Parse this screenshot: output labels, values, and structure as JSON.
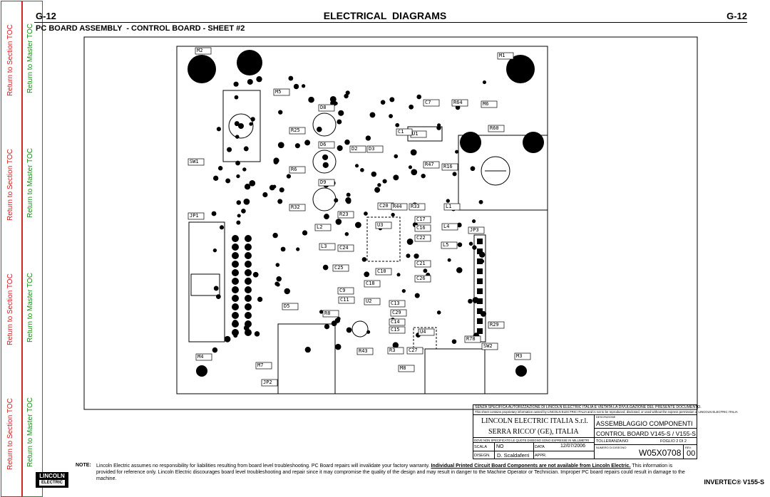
{
  "sidebar": {
    "section_toc": [
      "Return to Section TOC",
      "Return to Section TOC",
      "Return to Section TOC",
      "Return to Section TOC"
    ],
    "master_toc": [
      "Return to Master TOC",
      "Return to Master TOC",
      "Return to Master TOC",
      "Return to Master TOC"
    ]
  },
  "header": {
    "page_left": "G-12",
    "title": "ELECTRICAL  DIAGRAMS",
    "page_right": "G-12",
    "subtitle": "PC BOARD ASSEMBLY  - CONTROL BOARD - SHEET #2"
  },
  "pcb": {
    "labels": [
      "M2",
      "M1",
      "M5",
      "M6",
      "R60",
      "SW1",
      "JP1",
      "JP3",
      "M4",
      "M3",
      "M7",
      "M8",
      "JP2",
      "SW2",
      "D8",
      "D6",
      "D9",
      "D2",
      "D3",
      "R25",
      "R6",
      "R32",
      "U1",
      "U2",
      "U3",
      "U4",
      "C20",
      "C17",
      "C16",
      "C22",
      "C10",
      "C18",
      "C25",
      "C9",
      "C11",
      "C21",
      "C26",
      "C29",
      "C27",
      "R3",
      "R43",
      "R33",
      "R44",
      "R23",
      "L2",
      "L3",
      "L4",
      "L5",
      "L1",
      "D5",
      "R29",
      "R78",
      "R8",
      "C13",
      "C14",
      "C15",
      "C24",
      "C7",
      "C1",
      "R16",
      "R47",
      "R64"
    ]
  },
  "title_block": {
    "notice_it": "SENZA SPECIFICA AUTORIZZAZIONE DI LINCOLN ELECTRIC ITALIA È VIETATA LA DIVULGAZIONE DEL PRESENTE DOCUMENTO.",
    "notice_en": "This sheet contains proprietary information owned by LINCOLN ELECTRIC ITALIA and is not to be reproduced, disclosed, or used without the express permission of LINCOLN ELECTRIC ITALIA",
    "company": "LINCOLN ELECTRIC ITALIA S.r.l.",
    "address": "SERRA RICCO' (GE), ITALIA",
    "description_label": "DESCRIZIONE",
    "description_1": "ASSEMBLAGGIO COMPONENTI",
    "description_2": "CONTROL BOARD V145-S / V155-S",
    "dimensions_note": "DOVE NON SPECIFICATO LE QUOTE DISEGNO SONO ESPRESSE IN MILLIMETRI",
    "tolerance_label": "TOLLERANZA:",
    "tolerance": "NO",
    "sheet": "FOGLIO 2 DI 2",
    "scale_label": "SCALA",
    "scale": "NO",
    "date_label": "DATA",
    "date": "12/07/2006",
    "drawing_number_label": "NUMERO DI DISEGNO",
    "drawing_number": "W05X0708",
    "rev_label": "REV.",
    "rev": "00",
    "drawn_label": "DISEGN.",
    "drawn": "D. Scaldaferri",
    "approved_label": "APPR."
  },
  "footer": {
    "note_label": "NOTE:",
    "note_1": "Lincoln Electric assumes no responsibility for liabilities resulting from board level troubleshooting. PC Board repairs will invalidate your factory warranty. ",
    "note_bold": "Individual Printed Circuit Board Components are not available from Lincoln Electric.",
    "note_2": " This information is provided for reference only. Lincoln Electric discourages board level troubleshooting and repair since it may compromise the quality of the design and may result in danger to the Machine Operator or Technician. Improper PC board repairs could result in damage to the machine.",
    "logo_top": "LINCOLN",
    "logo_bottom": "ELECTRIC",
    "product": "INVERTEC® V155-S"
  }
}
